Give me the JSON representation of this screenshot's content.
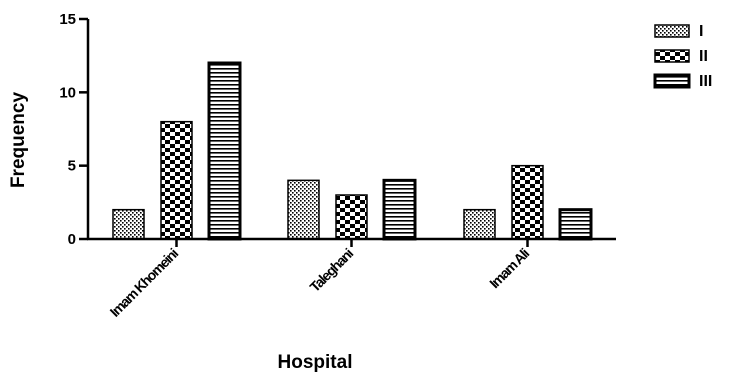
{
  "chart_data": {
    "type": "bar",
    "xlabel": "Hospital",
    "ylabel": "Frequency",
    "ylim": [
      0,
      15
    ],
    "yticks": [
      0,
      5,
      10,
      15
    ],
    "categories": [
      "Imam Khomeini",
      "Taleghani",
      "Imam Ali"
    ],
    "series": [
      {
        "name": "I",
        "values": [
          2,
          4,
          2
        ],
        "pattern": "dots"
      },
      {
        "name": "II",
        "values": [
          8,
          3,
          5
        ],
        "pattern": "checker"
      },
      {
        "name": "III",
        "values": [
          12,
          4,
          2
        ],
        "pattern": "hlines"
      }
    ],
    "grid": false,
    "legend": "top-right"
  }
}
